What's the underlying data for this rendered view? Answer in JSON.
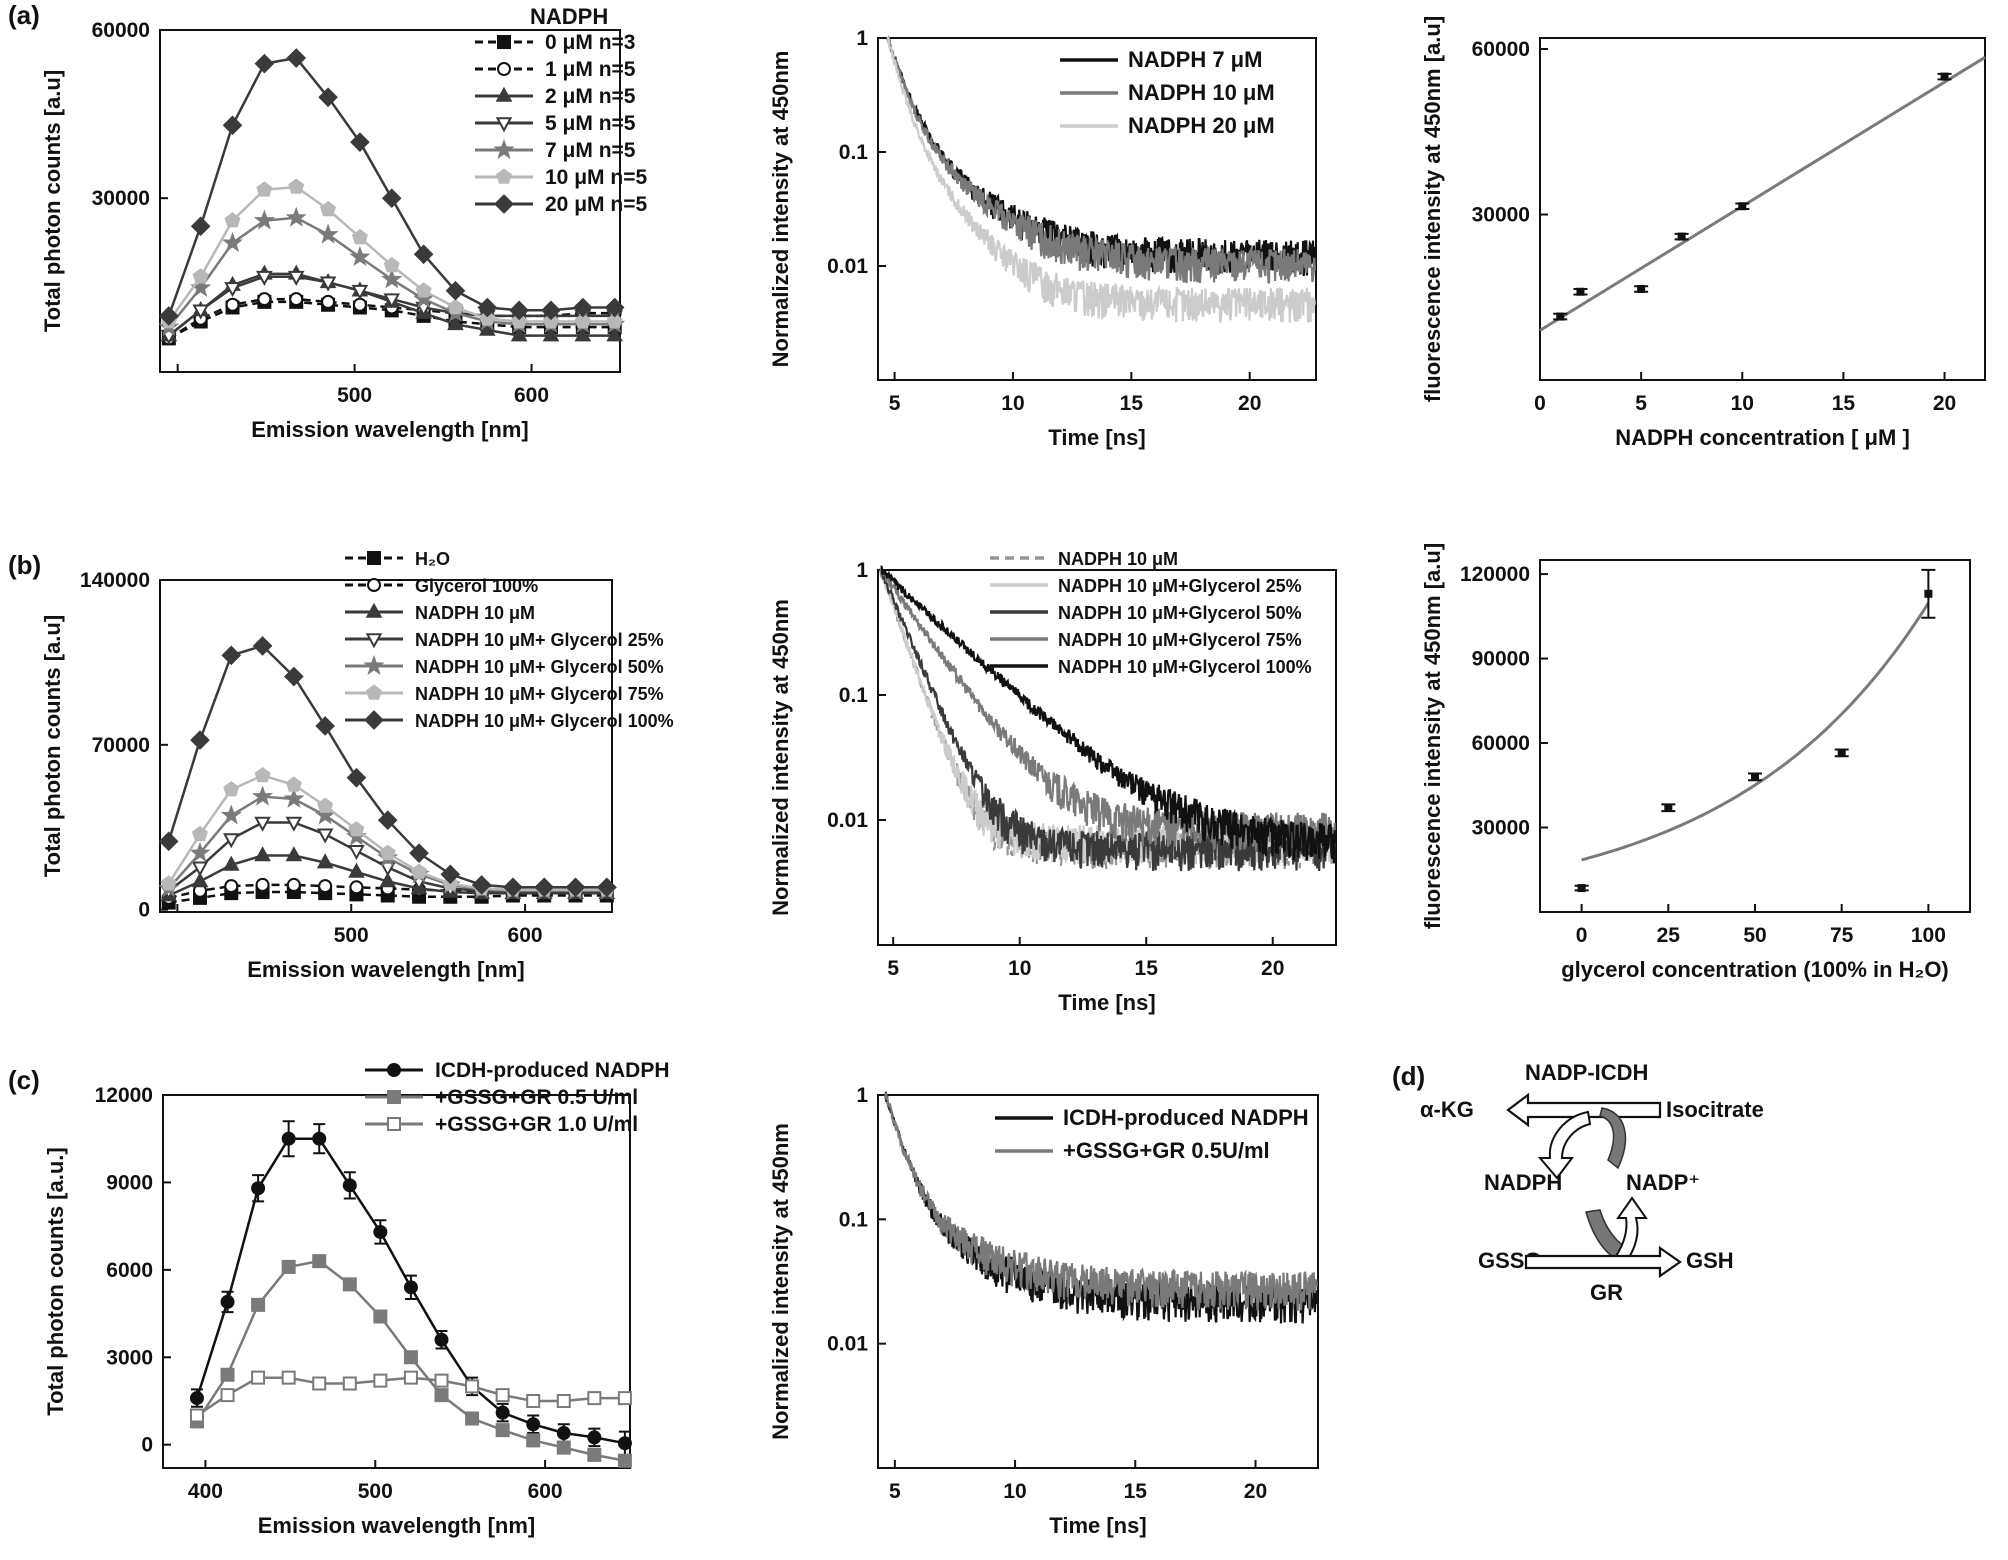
{
  "colors": {
    "black": "#111111",
    "dark": "#3a3a3a",
    "mid": "#7a7a7a",
    "midlight": "#969696",
    "light": "#b8b8b8",
    "lighter": "#cccccc"
  },
  "chart_data": [
    {
      "id": "a1",
      "panel_label": "(a)",
      "type": "line",
      "xlabel": "Emission wavelength [nm]",
      "ylabel": "Total photon counts [a.u]",
      "xlim": [
        390,
        650
      ],
      "ylim": [
        -1000,
        60000
      ],
      "xticks": [
        400,
        500,
        600
      ],
      "yticks": [
        30000,
        60000
      ],
      "xticklabels": [
        "500",
        "600"
      ],
      "yticklabels": [
        "30000",
        "60000"
      ],
      "legend_title": "NADPH",
      "x": [
        395,
        413,
        431,
        449,
        467,
        485,
        503,
        521,
        539,
        557,
        575,
        593,
        611,
        629,
        647
      ],
      "series": [
        {
          "name": "0 μM n=3",
          "marker": "square",
          "color": "black",
          "dash": true,
          "values": [
            5000,
            8000,
            10500,
            11500,
            11500,
            11000,
            10500,
            10000,
            9000,
            8000,
            7500,
            7000,
            7000,
            7000,
            7000
          ]
        },
        {
          "name": "1 μM n=5",
          "marker": "circle-open",
          "color": "black",
          "dash": true,
          "values": [
            5000,
            8500,
            11000,
            12000,
            12000,
            11500,
            11000,
            10500,
            10000,
            9500,
            9000,
            9000,
            9000,
            9500,
            9500
          ]
        },
        {
          "name": "2 μM n=5",
          "marker": "triangle",
          "color": "dark",
          "dash": false,
          "values": [
            5500,
            10000,
            14500,
            16500,
            16500,
            15000,
            13500,
            11500,
            9500,
            7500,
            6500,
            5500,
            5500,
            5500,
            5500
          ]
        },
        {
          "name": "5 μM n=5",
          "marker": "triangle-down-open",
          "color": "dark",
          "dash": false,
          "values": [
            5500,
            10000,
            14000,
            16000,
            16000,
            15000,
            13500,
            12000,
            10500,
            9500,
            9000,
            9000,
            9000,
            9000,
            9000
          ]
        },
        {
          "name": "7 μM n=5",
          "marker": "star",
          "color": "mid",
          "dash": false,
          "values": [
            7000,
            14000,
            22000,
            26000,
            26500,
            23500,
            19500,
            15500,
            12000,
            9500,
            8000,
            7500,
            7500,
            7500,
            7500
          ]
        },
        {
          "name": "10 μM n=5",
          "marker": "pentagon",
          "color": "light",
          "dash": false,
          "values": [
            8000,
            16000,
            26000,
            31500,
            32000,
            28000,
            23000,
            18000,
            13500,
            10500,
            8500,
            8000,
            8000,
            8000,
            8000
          ]
        },
        {
          "name": "20 μM n=5",
          "marker": "diamond",
          "color": "dark",
          "dash": false,
          "values": [
            9000,
            25000,
            43000,
            54000,
            55000,
            48000,
            40000,
            30000,
            20000,
            13500,
            10500,
            10000,
            10000,
            10500,
            10500
          ]
        }
      ]
    },
    {
      "id": "a2",
      "type": "line",
      "yscale": "log",
      "xlabel": "Time [ns]",
      "ylabel": "Normalized intensity at 450nm",
      "xlim": [
        4.3,
        22.8
      ],
      "ylim": [
        0.001,
        1
      ],
      "xticks": [
        5,
        10,
        15,
        20
      ],
      "yticks": [
        0.01,
        0.1,
        1
      ],
      "yticklabels": [
        "0.01",
        "0.1",
        "1"
      ],
      "t0": 4.7,
      "series": [
        {
          "name": "NADPH 7 μM",
          "color": "black",
          "tau1": 0.6,
          "tau2": 2.0,
          "a1": 0.8,
          "floor": 0.0125
        },
        {
          "name": "NADPH 10 μM",
          "color": "mid",
          "tau1": 0.58,
          "tau2": 2.0,
          "a1": 0.8,
          "floor": 0.0105
        },
        {
          "name": "NADPH 20 μM",
          "color": "lighter",
          "tau1": 0.5,
          "tau2": 1.5,
          "a1": 0.8,
          "floor": 0.0048
        }
      ]
    },
    {
      "id": "a3",
      "type": "scatter",
      "xlabel": "NADPH concentration [ μM ]",
      "ylabel": "fluorescence intensity at 450nm [a.u]",
      "xlim": [
        0,
        22
      ],
      "ylim": [
        0,
        62000
      ],
      "xticks": [
        0,
        5,
        10,
        15,
        20
      ],
      "yticks": [
        30000,
        60000
      ],
      "points": [
        {
          "x": 1,
          "y": 11500,
          "err": 500
        },
        {
          "x": 2,
          "y": 16000,
          "err": 500
        },
        {
          "x": 5,
          "y": 16500,
          "err": 500
        },
        {
          "x": 7,
          "y": 26000,
          "err": 500
        },
        {
          "x": 10,
          "y": 31500,
          "err": 500
        },
        {
          "x": 20,
          "y": 55000,
          "err": 500
        }
      ],
      "fit": {
        "type": "linear",
        "x": [
          0,
          22
        ],
        "y": [
          9000,
          58500
        ]
      }
    },
    {
      "id": "b1",
      "panel_label": "(b)",
      "type": "line",
      "xlabel": "Emission wavelength [nm]",
      "ylabel": "Total photon counts [a.u]",
      "xlim": [
        390,
        650
      ],
      "ylim": [
        -1000,
        140000
      ],
      "xticks": [
        400,
        500,
        600
      ],
      "yticks": [
        0,
        70000,
        140000
      ],
      "xticklabels": [
        "500",
        "600"
      ],
      "yticklabels": [
        "0",
        "70000",
        "140000"
      ],
      "x": [
        395,
        413,
        431,
        449,
        467,
        485,
        503,
        521,
        539,
        557,
        575,
        593,
        611,
        629,
        647
      ],
      "series": [
        {
          "name": "H₂O",
          "marker": "square",
          "color": "black",
          "dash": true,
          "values": [
            3000,
            5000,
            7000,
            7500,
            7500,
            7000,
            6500,
            6000,
            5500,
            5500,
            5500,
            6000,
            6000,
            6000,
            6000
          ]
        },
        {
          "name": "Glycerol 100%",
          "marker": "circle-open",
          "color": "black",
          "dash": true,
          "values": [
            5000,
            8000,
            10000,
            10500,
            10500,
            10000,
            9500,
            9000,
            8500,
            8000,
            8000,
            8000,
            8000,
            8000,
            8000
          ]
        },
        {
          "name": "NADPH 10 μM",
          "marker": "triangle",
          "color": "dark",
          "dash": false,
          "values": [
            6000,
            12000,
            19000,
            23000,
            23000,
            20000,
            16000,
            12000,
            9000,
            7500,
            7000,
            7000,
            7000,
            7000,
            7000
          ]
        },
        {
          "name": "NADPH 10 μM+ Glycerol 25%",
          "marker": "triangle-down-open",
          "color": "dark",
          "dash": false,
          "values": [
            8000,
            18000,
            30000,
            37000,
            37000,
            32000,
            25000,
            18000,
            12000,
            9000,
            8000,
            8000,
            8000,
            8000,
            8000
          ]
        },
        {
          "name": "NADPH 10 μM+ Glycerol 50%",
          "marker": "star",
          "color": "mid",
          "dash": false,
          "values": [
            9000,
            24000,
            40000,
            48000,
            47000,
            40000,
            31000,
            22000,
            15000,
            10500,
            8500,
            8000,
            8000,
            8000,
            8000
          ]
        },
        {
          "name": "NADPH 10 μM+ Glycerol 75%",
          "marker": "pentagon",
          "color": "light",
          "dash": false,
          "values": [
            11000,
            32000,
            51000,
            57000,
            53000,
            44000,
            34000,
            24000,
            16000,
            11000,
            9000,
            8500,
            8500,
            8500,
            8500
          ]
        },
        {
          "name": "NADPH 10 μM+ Glycerol 100%",
          "marker": "diamond",
          "color": "dark",
          "dash": false,
          "values": [
            29000,
            72000,
            108000,
            112000,
            99000,
            78000,
            56000,
            38000,
            24000,
            15000,
            10500,
            9500,
            9500,
            9500,
            9500
          ]
        }
      ]
    },
    {
      "id": "b2",
      "type": "line",
      "yscale": "log",
      "xlabel": "Time [ns]",
      "ylabel": "Normalized intensity at 450nm",
      "xlim": [
        4.4,
        22.5
      ],
      "ylim": [
        0.001,
        1
      ],
      "xticks": [
        5,
        10,
        15,
        20
      ],
      "yticks": [
        0.01,
        0.1,
        1
      ],
      "yticklabels": [
        "0.01",
        "0.1",
        "1"
      ],
      "t0": 4.5,
      "series": [
        {
          "name": "NADPH 10 μM",
          "color": "midlight",
          "dash": true,
          "tau1": 0.75,
          "tau2": 0,
          "a1": 1.0,
          "floor": 0.0062
        },
        {
          "name": "NADPH 10 μM+Glycerol 25%",
          "color": "lighter",
          "tau1": 0.75,
          "tau2": 0,
          "a1": 1.0,
          "floor": 0.0068
        },
        {
          "name": "NADPH 10 μM+Glycerol 50%",
          "color": "dark",
          "tau1": 0.9,
          "tau2": 0,
          "a1": 1.0,
          "floor": 0.006
        },
        {
          "name": "NADPH 10 μM+Glycerol 75%",
          "color": "mid",
          "tau1": 1.5,
          "tau2": 0,
          "a1": 1.0,
          "floor": 0.0085
        },
        {
          "name": "NADPH 10 μM+Glycerol 100%",
          "color": "black",
          "tau1": 2.3,
          "tau2": 0,
          "a1": 1.0,
          "floor": 0.0065
        }
      ]
    },
    {
      "id": "b3",
      "type": "scatter",
      "xlabel": "glycerol concentration (100% in H₂O)",
      "ylabel": "fluorescence intensity at 450nm [a.u]",
      "xlim": [
        -12,
        112
      ],
      "ylim": [
        0,
        125000
      ],
      "xticks": [
        0,
        25,
        50,
        75,
        100
      ],
      "yticks": [
        30000,
        60000,
        90000,
        120000
      ],
      "points": [
        {
          "x": 0,
          "y": 8500,
          "err": 800
        },
        {
          "x": 25,
          "y": 37000,
          "err": 1200
        },
        {
          "x": 50,
          "y": 48000,
          "err": 1200
        },
        {
          "x": 75,
          "y": 56500,
          "err": 1200
        },
        {
          "x": 100,
          "y": 113000,
          "err": 8500
        }
      ],
      "fit": {
        "type": "exponential",
        "a": 18500,
        "b": 0.0178,
        "x": [
          0,
          100
        ]
      }
    },
    {
      "id": "c1",
      "panel_label": "(c)",
      "type": "line",
      "xlabel": "Emission wavelength [nm]",
      "ylabel": "Total photon counts [a.u.]",
      "xlim": [
        375,
        650
      ],
      "ylim": [
        -800,
        12000
      ],
      "xticks": [
        400,
        500,
        600
      ],
      "yticks": [
        0,
        3000,
        6000,
        9000,
        12000
      ],
      "xticklabels": [
        "400",
        "500",
        "600"
      ],
      "yticklabels": [
        "0",
        "3000",
        "6000",
        "9000",
        "12000"
      ],
      "x": [
        395,
        413,
        431,
        449,
        467,
        485,
        503,
        521,
        539,
        557,
        575,
        593,
        611,
        629,
        647
      ],
      "series": [
        {
          "name": "ICDH-produced NADPH",
          "marker": "circle",
          "color": "black",
          "dash": false,
          "values": [
            1600,
            4900,
            8800,
            10500,
            10500,
            8900,
            7300,
            5400,
            3600,
            2000,
            1100,
            700,
            400,
            250,
            50
          ],
          "errors": [
            300,
            350,
            450,
            600,
            500,
            450,
            400,
            400,
            300,
            300,
            300,
            300,
            300,
            300,
            400
          ]
        },
        {
          "name": "+GSSG+GR 0.5 U/ml",
          "marker": "square",
          "color": "mid",
          "dash": false,
          "values": [
            800,
            2400,
            4800,
            6100,
            6300,
            5500,
            4400,
            3000,
            1700,
            900,
            500,
            150,
            -100,
            -350,
            -550
          ],
          "errors": [
            0,
            0,
            150,
            200,
            150,
            0,
            0,
            0,
            0,
            0,
            0,
            0,
            0,
            0,
            0
          ]
        },
        {
          "name": "+GSSG+GR 1.0 U/ml",
          "marker": "square-open",
          "color": "mid",
          "dash": false,
          "values": [
            1000,
            1700,
            2300,
            2300,
            2100,
            2100,
            2200,
            2300,
            2200,
            2000,
            1700,
            1500,
            1500,
            1600,
            1600
          ],
          "errors": [
            0,
            0,
            0,
            0,
            0,
            0,
            0,
            0,
            0,
            0,
            0,
            0,
            0,
            0,
            0
          ]
        }
      ]
    },
    {
      "id": "c2",
      "type": "line",
      "yscale": "log",
      "xlabel": "Time [ns]",
      "ylabel": "Normalized intensity at 450nm",
      "xlim": [
        4.3,
        22.6
      ],
      "ylim": [
        0.001,
        1
      ],
      "xticks": [
        5,
        10,
        15,
        20
      ],
      "yticks": [
        0.01,
        0.1,
        1
      ],
      "yticklabels": [
        "0.01",
        "0.1",
        "1"
      ],
      "t0": 4.6,
      "series": [
        {
          "name": "ICDH-produced NADPH",
          "color": "black",
          "tau1": 0.6,
          "tau2": 2.3,
          "a1": 0.85,
          "floor": 0.022
        },
        {
          "name": "+GSSG+GR 0.5U/ml",
          "color": "mid",
          "tau1": 0.6,
          "tau2": 2.3,
          "a1": 0.85,
          "floor": 0.028
        }
      ]
    }
  ],
  "diagram": {
    "panel_label": "(d)",
    "enzyme": "NADP-ICDH",
    "left_product": "α-KG",
    "right_substrate": "Isocitrate",
    "cofactor_reduced": "NADPH",
    "cofactor_oxidized": "NADP⁺",
    "glut_left": "GSSG",
    "glut_right": "GSH",
    "glut_enzyme": "GR"
  }
}
